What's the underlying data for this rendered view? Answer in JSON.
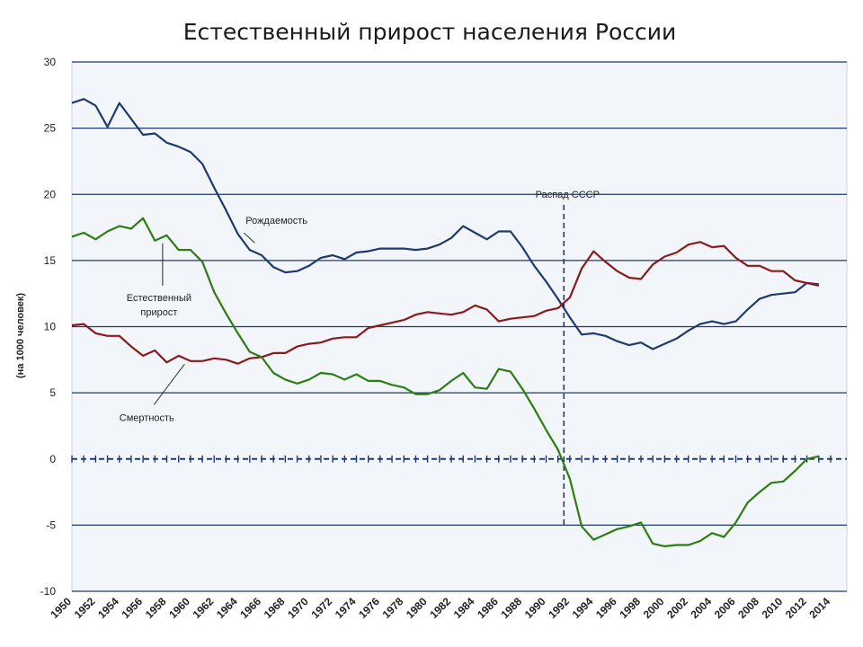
{
  "chart_data": {
    "type": "line",
    "title": "Естественный прирост населения России",
    "ylabel": "(на 1000 человек)",
    "xlabel": "",
    "ylim": [
      -10,
      30
    ],
    "yticks": [
      30,
      25,
      20,
      15,
      10,
      5,
      0,
      -5,
      -10
    ],
    "xlim": [
      1950,
      2014
    ],
    "xticks": [
      "1950",
      "1952",
      "1954",
      "1956",
      "1958",
      "1960",
      "1962",
      "1964",
      "1966",
      "1968",
      "1970",
      "1972",
      "1974",
      "1976",
      "1978",
      "1980",
      "1982",
      "1984",
      "1986",
      "1988",
      "1990",
      "1992",
      "1994",
      "1996",
      "1998",
      "2000",
      "2002",
      "2004",
      "2006",
      "2008",
      "2010",
      "2012",
      "2014"
    ],
    "grid": true,
    "colors": {
      "birth": "#1f3a6e",
      "death": "#8b1a1a",
      "natural": "#2e7d12",
      "grid": "#1f3a6e",
      "background": "#f2f6fb"
    },
    "series": [
      {
        "key": "birth",
        "name": "Рождаемость",
        "x": [
          1950,
          1951,
          1952,
          1953,
          1954,
          1955,
          1956,
          1957,
          1958,
          1959,
          1960,
          1961,
          1962,
          1963,
          1964,
          1965,
          1966,
          1967,
          1968,
          1969,
          1970,
          1971,
          1972,
          1973,
          1974,
          1975,
          1976,
          1977,
          1978,
          1979,
          1980,
          1981,
          1982,
          1983,
          1984,
          1985,
          1986,
          1987,
          1988,
          1989,
          1990,
          1991,
          1992,
          1993,
          1994,
          1995,
          1996,
          1997,
          1998,
          1999,
          2000,
          2001,
          2002,
          2003,
          2004,
          2005,
          2006,
          2007,
          2008,
          2009,
          2010,
          2011,
          2012,
          2013
        ],
        "values": [
          26.9,
          27.2,
          26.7,
          25.1,
          26.9,
          25.7,
          24.5,
          24.6,
          23.9,
          23.6,
          23.2,
          22.3,
          20.5,
          18.8,
          17.0,
          15.8,
          15.4,
          14.5,
          14.1,
          14.2,
          14.6,
          15.2,
          15.4,
          15.1,
          15.6,
          15.7,
          15.9,
          15.9,
          15.9,
          15.8,
          15.9,
          16.2,
          16.7,
          17.6,
          17.1,
          16.6,
          17.2,
          17.2,
          16.0,
          14.6,
          13.4,
          12.1,
          10.7,
          9.4,
          9.5,
          9.3,
          8.9,
          8.6,
          8.8,
          8.3,
          8.7,
          9.1,
          9.7,
          10.2,
          10.4,
          10.2,
          10.4,
          11.3,
          12.1,
          12.4,
          12.5,
          12.6,
          13.3,
          13.2
        ]
      },
      {
        "key": "death",
        "name": "Смертность",
        "x": [
          1950,
          1951,
          1952,
          1953,
          1954,
          1955,
          1956,
          1957,
          1958,
          1959,
          1960,
          1961,
          1962,
          1963,
          1964,
          1965,
          1966,
          1967,
          1968,
          1969,
          1970,
          1971,
          1972,
          1973,
          1974,
          1975,
          1976,
          1977,
          1978,
          1979,
          1980,
          1981,
          1982,
          1983,
          1984,
          1985,
          1986,
          1987,
          1988,
          1989,
          1990,
          1991,
          1992,
          1993,
          1994,
          1995,
          1996,
          1997,
          1998,
          1999,
          2000,
          2001,
          2002,
          2003,
          2004,
          2005,
          2006,
          2007,
          2008,
          2009,
          2010,
          2011,
          2012,
          2013
        ],
        "values": [
          10.1,
          10.2,
          9.5,
          9.3,
          9.3,
          8.5,
          7.8,
          8.2,
          7.3,
          7.8,
          7.4,
          7.4,
          7.6,
          7.5,
          7.2,
          7.6,
          7.7,
          8.0,
          8.0,
          8.5,
          8.7,
          8.8,
          9.1,
          9.2,
          9.2,
          9.9,
          10.1,
          10.3,
          10.5,
          10.9,
          11.1,
          11.0,
          10.9,
          11.1,
          11.6,
          11.3,
          10.4,
          10.6,
          10.7,
          10.8,
          11.2,
          11.4,
          12.2,
          14.4,
          15.7,
          14.9,
          14.2,
          13.7,
          13.6,
          14.7,
          15.3,
          15.6,
          16.2,
          16.4,
          16.0,
          16.1,
          15.2,
          14.6,
          14.6,
          14.2,
          14.2,
          13.5,
          13.3,
          13.1
        ]
      },
      {
        "key": "natural",
        "name": "Естественный прирост",
        "x": [
          1950,
          1951,
          1952,
          1953,
          1954,
          1955,
          1956,
          1957,
          1958,
          1959,
          1960,
          1961,
          1962,
          1963,
          1964,
          1965,
          1966,
          1967,
          1968,
          1969,
          1970,
          1971,
          1972,
          1973,
          1974,
          1975,
          1976,
          1977,
          1978,
          1979,
          1980,
          1981,
          1982,
          1983,
          1984,
          1985,
          1986,
          1987,
          1988,
          1989,
          1990,
          1991,
          1992,
          1993,
          1994,
          1995,
          1996,
          1997,
          1998,
          1999,
          2000,
          2001,
          2002,
          2003,
          2004,
          2005,
          2006,
          2007,
          2008,
          2009,
          2010,
          2011,
          2012,
          2013
        ],
        "values": [
          16.8,
          17.1,
          16.6,
          17.2,
          17.6,
          17.4,
          18.2,
          16.5,
          16.9,
          15.8,
          15.8,
          14.9,
          12.6,
          11.0,
          9.5,
          8.1,
          7.7,
          6.5,
          6.0,
          5.7,
          6.0,
          6.5,
          6.4,
          6.0,
          6.4,
          5.9,
          5.9,
          5.6,
          5.4,
          4.9,
          4.9,
          5.2,
          5.9,
          6.5,
          5.4,
          5.3,
          6.8,
          6.6,
          5.3,
          3.8,
          2.2,
          0.7,
          -1.5,
          -5.1,
          -6.1,
          -5.7,
          -5.3,
          -5.1,
          -4.8,
          -6.4,
          -6.6,
          -6.5,
          -6.5,
          -6.2,
          -5.6,
          -5.9,
          -4.8,
          -3.3,
          -2.5,
          -1.8,
          -1.7,
          -0.9,
          0.0,
          0.2
        ]
      }
    ],
    "annotations": [
      {
        "key": "birth",
        "text": "Рождаемость",
        "x": 1964.5,
        "y": 17.5
      },
      {
        "key": "natural",
        "text": "Естественный",
        "text2": "прирост",
        "x": 1957.5,
        "y": 16.3
      },
      {
        "key": "death",
        "text": "Смертность",
        "x": 1959.5,
        "y": 7.3
      },
      {
        "key": "ussr",
        "text": "Распад СССР",
        "x": 1991.5
      }
    ]
  }
}
